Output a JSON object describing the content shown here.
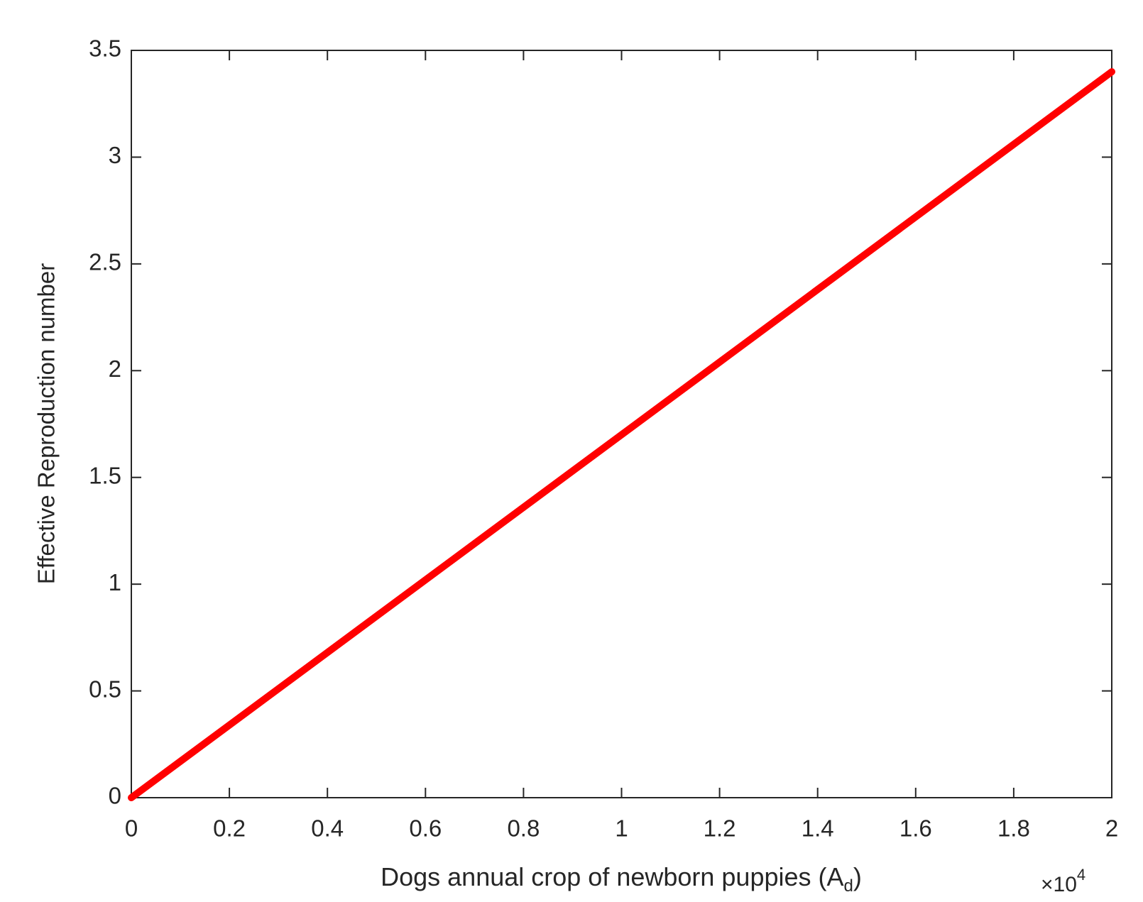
{
  "chart_data": {
    "type": "line",
    "x_label": {
      "text": "Dogs annual crop of newborn puppies (A",
      "subscript": "d",
      "end": ")"
    },
    "x_multiplier": {
      "base": "×10",
      "exponent": "4"
    },
    "y_label": "Effective Reproduction number",
    "x": [
      0,
      2
    ],
    "series": [
      {
        "color": "#ff0000",
        "values": [
          0,
          3.4
        ]
      }
    ],
    "xlim": [
      0,
      2
    ],
    "xticks": [
      0,
      0.2,
      0.4,
      0.6,
      0.8,
      1,
      1.2,
      1.4,
      1.6,
      1.8,
      2
    ],
    "ylim": [
      0,
      3.5
    ],
    "yticks": [
      0,
      0.5,
      1,
      1.5,
      2,
      2.5,
      3,
      3.5
    ],
    "grid": false
  }
}
